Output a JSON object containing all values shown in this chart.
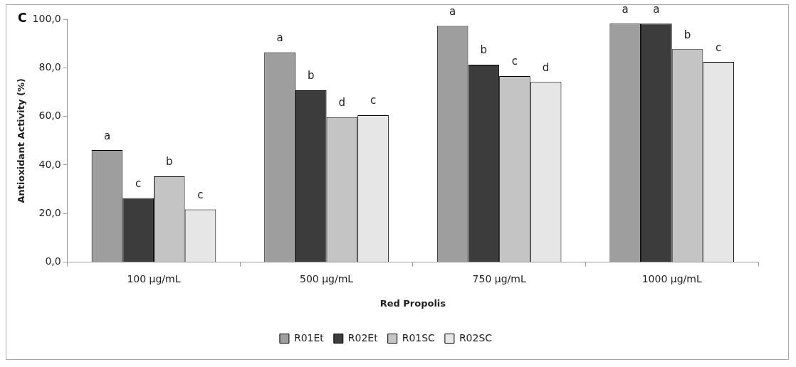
{
  "chart_data": {
    "type": "bar",
    "title": "C",
    "xlabel": "Red Propolis",
    "ylabel": "Antioxidant Activity (%)",
    "categories": [
      "100 µg/mL",
      "500 µg/mL",
      "750 µg/mL",
      "1000 µg/mL"
    ],
    "series": [
      {
        "name": "R01Et",
        "color": "#9e9e9e",
        "values": [
          46.1,
          86.4,
          97.2,
          98.2
        ],
        "value_labels": [
          "a",
          "a",
          "a",
          "a"
        ]
      },
      {
        "name": "R02Et",
        "color": "#3c3c3c",
        "values": [
          26.4,
          70.7,
          81.3,
          98.2
        ],
        "value_labels": [
          "c",
          "b",
          "b",
          "a"
        ]
      },
      {
        "name": "R01SC",
        "color": "#c4c4c4",
        "values": [
          35.3,
          59.7,
          76.6,
          87.6
        ],
        "value_labels": [
          "b",
          "d",
          "c",
          "b"
        ]
      },
      {
        "name": "R02SC",
        "color": "#e6e6e6",
        "values": [
          21.7,
          60.5,
          74.2,
          82.4
        ],
        "value_labels": [
          "c",
          "c",
          "d",
          "c"
        ]
      }
    ],
    "ylim": [
      0,
      100
    ],
    "yticks": [
      {
        "value": 0,
        "label": "0,0"
      },
      {
        "value": 20,
        "label": "20,0"
      },
      {
        "value": 40,
        "label": "40,0"
      },
      {
        "value": 60,
        "label": "60,0"
      },
      {
        "value": 80,
        "label": "80,0"
      },
      {
        "value": 100,
        "label": "100,0"
      }
    ],
    "grid": false,
    "legend": "bottom"
  }
}
